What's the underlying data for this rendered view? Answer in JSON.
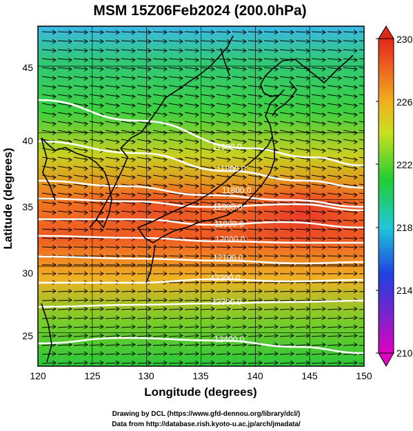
{
  "title": "MSM 15Z06Feb2024 (200.0hPa)",
  "map": {
    "xlabel": "Longitude (degrees)",
    "ylabel": "Latitude  (degrees)",
    "lon_range": [
      120,
      150
    ],
    "lat_range": [
      22.5,
      48
    ],
    "x_ticks": [
      "120",
      "125",
      "130",
      "135",
      "140",
      "145",
      "150"
    ],
    "y_ticks": [
      "25",
      "30",
      "35",
      "40",
      "45"
    ],
    "shaded_field_range": [
      210,
      230
    ],
    "contour_labels": [
      "11900.0",
      "11900.0",
      "11800.0",
      "11900.0",
      "11900.0",
      "12000.0",
      "12100.0",
      "12200.0",
      "12300.0",
      "12400.0"
    ],
    "wind_vectors": "westerly wind vectors over the whole domain",
    "colors": {
      "contour": "#ffffff",
      "coast": "#000000",
      "shade_min": "#e000c0",
      "shade_mid": "#22cc33",
      "shade_max": "#e63a1a"
    }
  },
  "colorbar": {
    "labels": [
      "230",
      "226",
      "222",
      "218",
      "214",
      "210"
    ]
  },
  "credits": {
    "line1": "Drawing by DCL (https://www.gfd-dennou.org/library/dcl/)",
    "line2": "Data from http://database.rish.kyoto-u.ac.jp/arch/jmadata/"
  }
}
